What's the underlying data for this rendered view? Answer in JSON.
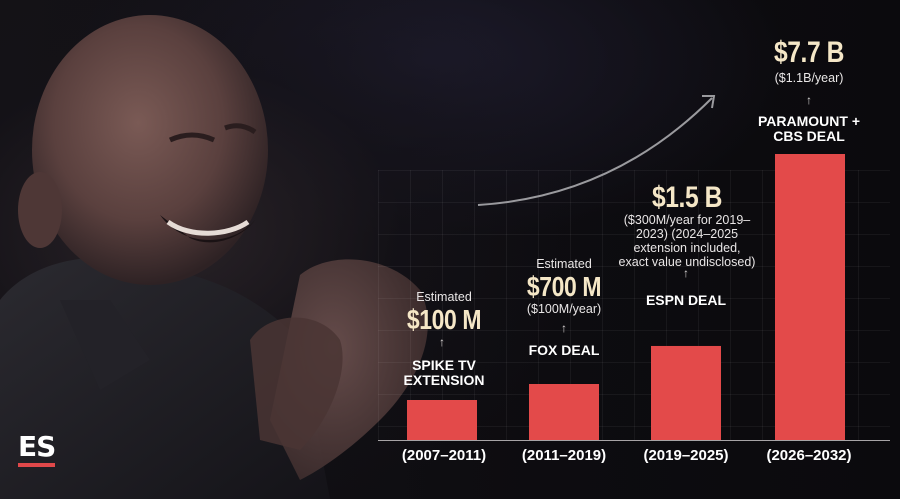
{
  "brand": {
    "logo_text": "ES",
    "accent": "#e0484a"
  },
  "chart_data": {
    "type": "bar",
    "categories": [
      "(2007–2011)",
      "(2011–2019)",
      "(2019–2025)",
      "(2026–2032)"
    ],
    "values": [
      0.1,
      0.7,
      1.5,
      7.7
    ],
    "unit": "billion USD",
    "ylim": [
      0,
      7.7
    ],
    "grid": true,
    "bar_color": "#e34a4a",
    "bars": [
      {
        "period": "(2007–2011)",
        "deal": "SPIKE TV EXTENSION",
        "amount": "$100 M",
        "prefix": "Estimated",
        "note": "",
        "value": 0.1
      },
      {
        "period": "(2011–2019)",
        "deal": "FOX DEAL",
        "amount": "$700 M",
        "prefix": "Estimated",
        "note": "($100M/year)",
        "value": 0.7
      },
      {
        "period": "(2019–2025)",
        "deal": "ESPN DEAL",
        "amount": "$1.5 B",
        "prefix": "",
        "note": "($300M/year for 2019–2023) (2024–2025 extension included, exact value undisclosed)",
        "value": 1.5
      },
      {
        "period": "(2026–2032)",
        "deal": "PARAMOUNT + CBS DEAL",
        "amount": "$7.7 B",
        "prefix": "",
        "note": "($1.1B/year)",
        "value": 7.7
      }
    ]
  }
}
